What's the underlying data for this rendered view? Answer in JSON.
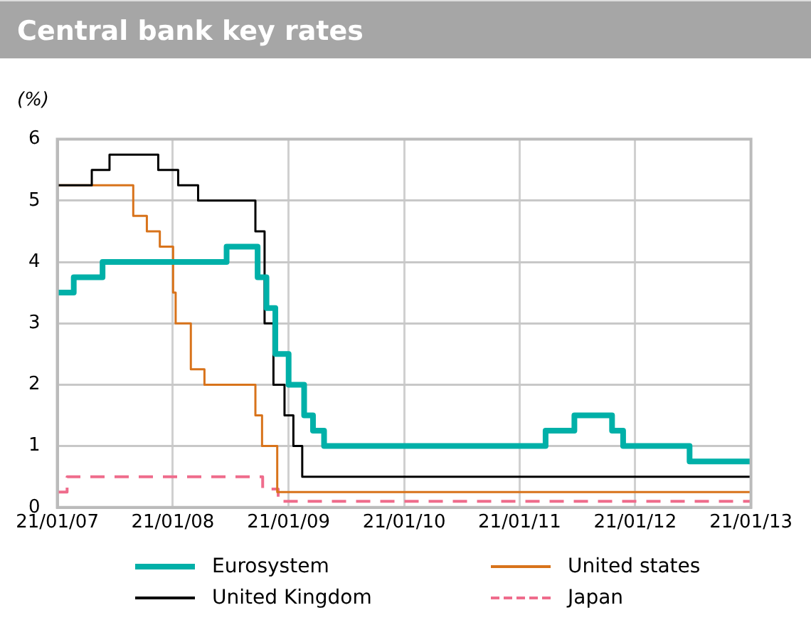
{
  "chart_data": {
    "type": "step",
    "title": "Central bank key rates",
    "ylabel": "(%)",
    "xlim": [
      "2007-01-21",
      "2013-01-21"
    ],
    "xticks": [
      {
        "value": "2007-01-21",
        "label": "21/01/07"
      },
      {
        "value": "2008-01-21",
        "label": "21/01/08"
      },
      {
        "value": "2009-01-21",
        "label": "21/01/09"
      },
      {
        "value": "2010-01-21",
        "label": "21/01/10"
      },
      {
        "value": "2011-01-21",
        "label": "21/01/11"
      },
      {
        "value": "2012-01-21",
        "label": "21/01/12"
      },
      {
        "value": "2013-01-21",
        "label": "21/01/13"
      }
    ],
    "ylim": [
      0,
      6
    ],
    "yticks": [
      0,
      1,
      2,
      3,
      4,
      5,
      6
    ],
    "grid": true,
    "legend": "bottom",
    "marker": "none",
    "series": [
      {
        "name": "Eurosystem",
        "color": "#00b0a8",
        "x": [
          "2007-01-21",
          "2007-03-14",
          "2007-06-13",
          "2008-07-09",
          "2008-10-15",
          "2008-11-12",
          "2008-12-10",
          "2009-01-21",
          "2009-03-11",
          "2009-04-08",
          "2009-05-13",
          "2011-04-13",
          "2011-07-13",
          "2011-11-09",
          "2011-12-14",
          "2012-07-11",
          "2013-01-21"
        ],
        "values": [
          3.5,
          3.75,
          4.0,
          4.25,
          3.75,
          3.25,
          2.5,
          2.0,
          1.5,
          1.25,
          1.0,
          1.25,
          1.5,
          1.25,
          1.0,
          0.75,
          0.75
        ]
      },
      {
        "name": "United Kingdom",
        "color": "#000000",
        "x": [
          "2007-01-21",
          "2007-05-10",
          "2007-07-05",
          "2007-12-06",
          "2008-02-07",
          "2008-04-10",
          "2008-10-08",
          "2008-11-06",
          "2008-12-04",
          "2009-01-08",
          "2009-02-05",
          "2009-03-05",
          "2013-01-21"
        ],
        "values": [
          5.25,
          5.5,
          5.75,
          5.5,
          5.25,
          5.0,
          4.5,
          3.0,
          2.0,
          1.5,
          1.0,
          0.5,
          0.5
        ]
      },
      {
        "name": "United states",
        "color": "#d8731b",
        "x": [
          "2007-01-21",
          "2007-09-18",
          "2007-10-31",
          "2007-12-11",
          "2008-01-22",
          "2008-01-30",
          "2008-03-18",
          "2008-04-30",
          "2008-10-08",
          "2008-10-29",
          "2008-12-16",
          "2013-01-21"
        ],
        "values": [
          5.25,
          4.75,
          4.5,
          4.25,
          3.5,
          3.0,
          2.25,
          2.0,
          1.5,
          1.0,
          0.25,
          0.25
        ]
      },
      {
        "name": "Japan",
        "color": "#ef6c8c",
        "line_style": "dashed",
        "x": [
          "2007-01-21",
          "2007-02-21",
          "2008-10-31",
          "2008-12-19",
          "2013-01-21"
        ],
        "values": [
          0.25,
          0.5,
          0.3,
          0.1,
          0.1
        ]
      }
    ]
  }
}
